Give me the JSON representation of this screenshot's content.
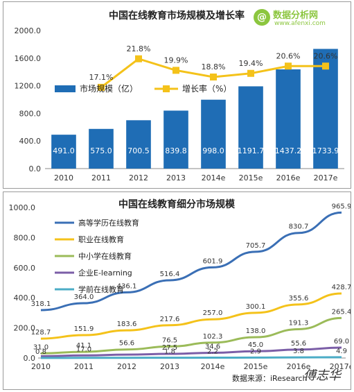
{
  "chart_data": [
    {
      "type": "bar",
      "title": "中国在线教育市场规模及增长率",
      "categories": [
        "2010",
        "2011",
        "2012",
        "2013",
        "2014e",
        "2015e",
        "2016e",
        "2017e"
      ],
      "series": [
        {
          "name": "市场规模（亿）",
          "type": "bar",
          "color": "#1f6db5",
          "values": [
            491.0,
            575.0,
            700.5,
            839.8,
            998.0,
            1191.7,
            1437.2,
            1733.9
          ],
          "labels": [
            "491.0",
            "575.0",
            "700.5",
            "839.8",
            "998.0",
            "1191.7",
            "1437.2",
            "1733.9"
          ]
        },
        {
          "name": "增长率（%）",
          "type": "line",
          "color": "#f4c21a",
          "values": [
            null,
            17.1,
            21.8,
            19.9,
            18.8,
            19.4,
            20.6,
            20.6
          ],
          "labels": [
            "",
            "17.1%",
            "21.8%",
            "19.9%",
            "18.8%",
            "19.4%",
            "20.6%",
            "20.6%"
          ]
        }
      ],
      "ylim": [
        0,
        2000
      ],
      "yticks": [
        "0.0",
        "400.0",
        "800.0",
        "1200.0",
        "1600.0",
        "2000.0"
      ],
      "legend": "inside top-left"
    },
    {
      "type": "line",
      "title": "中国在线教育细分市场规模",
      "categories": [
        "2010",
        "2011",
        "2012",
        "2013",
        "2014e",
        "2015e",
        "2016e",
        "2017e"
      ],
      "series": [
        {
          "name": "高等学历在线教育",
          "color": "#3a6fb5",
          "values": [
            318.1,
            364.0,
            436.1,
            516.4,
            601.9,
            705.7,
            830.7,
            965.9
          ],
          "labels": [
            "318.1",
            "364.0",
            "436.1",
            "516.4",
            "601.9",
            "705.7",
            "830.7",
            "965.9"
          ]
        },
        {
          "name": "职业在线教育",
          "color": "#f4c21a",
          "values": [
            128.7,
            151.9,
            183.6,
            217.6,
            257.0,
            300.1,
            355.6,
            428.7
          ],
          "labels": [
            "128.7",
            "151.9",
            "183.6",
            "217.6",
            "257.0",
            "300.1",
            "355.6",
            "428.7"
          ]
        },
        {
          "name": "中小学在线教育",
          "color": "#9bbb59",
          "values": [
            31.0,
            41.1,
            56.6,
            76.5,
            102.3,
            138.0,
            191.3,
            265.4
          ],
          "labels": [
            "31.0",
            "41.1",
            "56.6",
            "76.5",
            "102.3",
            "138.0",
            "191.3",
            "265.4"
          ]
        },
        {
          "name": "企业E-learning",
          "color": "#7b5ea7",
          "values": [
            12.0,
            17.0,
            22.4,
            27.5,
            34.6,
            45.0,
            55.6,
            69.0
          ],
          "labels": [
            "",
            "17.0",
            "",
            "27.5",
            "34.6",
            "45.0",
            "55.6",
            "69.0"
          ]
        },
        {
          "name": "学前在线教育",
          "color": "#4bacc6",
          "values": [
            0.8,
            0.9,
            1.1,
            1.8,
            2.2,
            2.9,
            3.8,
            4.9
          ],
          "labels": [
            "0.8",
            "",
            "",
            "1.8",
            "2.2",
            "2.9",
            "3.8",
            "4.9"
          ]
        }
      ],
      "ylim": [
        0,
        1000
      ],
      "yticks": [
        "0.0",
        "200.0",
        "400.0",
        "600.0",
        "800.0",
        "1000.0"
      ],
      "legend": "inside top-left",
      "source": "数据来源：iResearch"
    }
  ],
  "logo": {
    "name": "数据分析网",
    "url": "www.afenxi.com",
    "symbol": "@",
    "color": "#8cc63f"
  },
  "watermark": "傅志华"
}
